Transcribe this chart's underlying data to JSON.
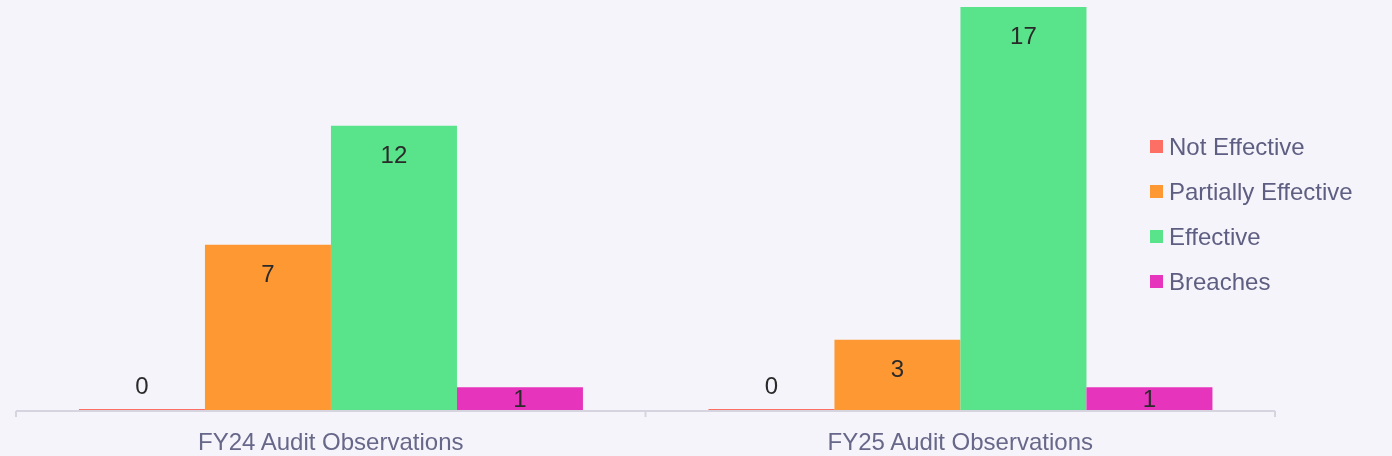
{
  "chart_data": {
    "type": "bar",
    "categories": [
      "FY24 Audit Observations",
      "FY25 Audit Observations"
    ],
    "series": [
      {
        "name": "Not Effective",
        "color": "#fd6f64",
        "values": [
          0,
          0
        ]
      },
      {
        "name": "Partially Effective",
        "color": "#fe9833",
        "values": [
          7,
          3
        ]
      },
      {
        "name": "Effective",
        "color": "#59e38a",
        "values": [
          12,
          17
        ]
      },
      {
        "name": "Breaches",
        "color": "#e734bd",
        "values": [
          1,
          1
        ]
      }
    ],
    "data_labels": true,
    "legend": "right",
    "tick_labels": "x"
  }
}
